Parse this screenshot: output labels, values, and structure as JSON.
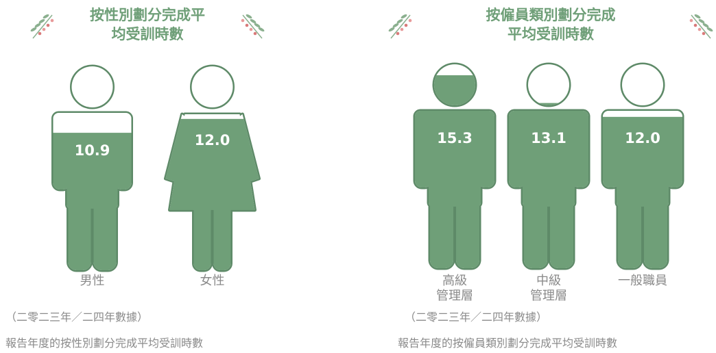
{
  "chart_data": [
    {
      "type": "pictogram",
      "title": "按性別劃分完成平均受訓時數",
      "categories": [
        "男性",
        "女性"
      ],
      "figures": [
        "male",
        "female"
      ],
      "values": [
        10.9,
        12.0
      ],
      "value_labels": [
        "10.9",
        "12.0"
      ],
      "color": "#6f9f78",
      "note": "（二零二三年／二四年數據）",
      "caption": "報告年度的按性別劃分完成平均受訓時數"
    },
    {
      "type": "pictogram",
      "title": "按僱員類別劃分完成平均受訓時數",
      "categories": [
        "高級\n管理層",
        "中級\n管理層",
        "一般職員"
      ],
      "figures": [
        "male",
        "male",
        "male"
      ],
      "values": [
        15.3,
        13.1,
        12.0
      ],
      "value_labels": [
        "15.3",
        "13.1",
        "12.0"
      ],
      "color": "#6f9f78",
      "note": "（二零二三年／二四年數據）",
      "caption": "報告年度的按僱員類別劃分完成平均受訓時數"
    }
  ]
}
